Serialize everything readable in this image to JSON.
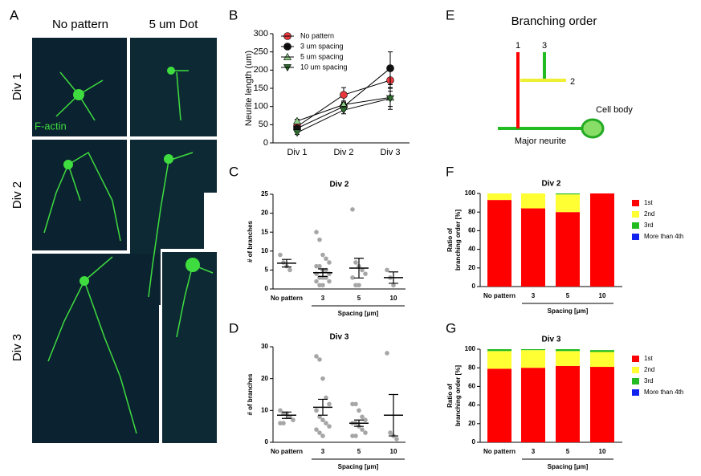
{
  "panel_a": {
    "letter": "A",
    "columns": [
      "No pattern",
      "5 um Dot"
    ],
    "rows": [
      "Div 1",
      "Div 2",
      "Div 3"
    ],
    "stain": "F-actin"
  },
  "panel_e": {
    "letter": "E",
    "title": "Branching order",
    "labels": [
      "1",
      "3",
      "2",
      "Cell body",
      "Major neurite"
    ]
  },
  "chart_data": [
    {
      "type": "line",
      "letter": "B",
      "ylabel": "Neurite length (um)",
      "categories": [
        "Div 1",
        "Div 2",
        "Div 3"
      ],
      "ylim": [
        0,
        300
      ],
      "yticks": [
        0,
        50,
        100,
        150,
        200,
        250,
        300
      ],
      "series": [
        {
          "name": "No pattern",
          "color": "#e8383d",
          "marker": "circle",
          "values": [
            45,
            132,
            172
          ],
          "errors": [
            5,
            20,
            30
          ]
        },
        {
          "name": "3 um spacing",
          "color": "#111111",
          "marker": "circle",
          "values": [
            40,
            100,
            205
          ],
          "errors": [
            5,
            10,
            45
          ]
        },
        {
          "name": "5 um spacing",
          "color": "#8fd08a",
          "marker": "triangle-up",
          "values": [
            60,
            105,
            125
          ],
          "errors": [
            5,
            10,
            25
          ]
        },
        {
          "name": "10 um spacing",
          "color": "#2e6b2e",
          "marker": "triangle-down",
          "values": [
            28,
            90,
            122
          ],
          "errors": [
            5,
            10,
            30
          ]
        }
      ]
    },
    {
      "type": "strip",
      "letter": "C",
      "title": "Div 2",
      "ylabel": "# of branches",
      "xlabel": "Spacing [μm]",
      "categories": [
        "No pattern",
        "3",
        "5",
        "10"
      ],
      "ylim": [
        0,
        25
      ],
      "yticks": [
        0,
        5,
        10,
        15,
        20,
        25
      ],
      "color": "#a6a6a6",
      "points": [
        [
          9,
          7,
          6,
          5
        ],
        [
          15,
          13,
          9,
          8,
          7,
          6,
          6,
          5,
          5,
          4,
          4,
          3,
          3,
          3,
          2,
          2,
          1,
          1
        ],
        [
          21,
          7,
          6,
          5,
          4,
          3,
          1,
          1
        ],
        [
          5,
          3,
          1
        ]
      ],
      "means": [
        6.8,
        4.3,
        5.5,
        3
      ],
      "sems": [
        1,
        1,
        2.6,
        1.5
      ]
    },
    {
      "type": "strip",
      "letter": "D",
      "title": "Div 3",
      "ylabel": "# of branches",
      "xlabel": "Spacing [μm]",
      "categories": [
        "No pattern",
        "3",
        "5",
        "10"
      ],
      "ylim": [
        0,
        30
      ],
      "yticks": [
        0,
        10,
        20,
        30
      ],
      "color": "#a6a6a6",
      "points": [
        [
          10,
          9,
          9,
          8,
          7,
          6,
          6
        ],
        [
          27,
          26,
          20,
          14,
          12,
          10,
          8,
          7,
          6,
          5,
          4,
          3,
          2
        ],
        [
          12,
          12,
          10,
          8,
          7,
          6,
          6,
          5,
          4,
          3,
          2,
          2
        ],
        [
          28,
          3,
          2,
          1
        ]
      ],
      "means": [
        8.5,
        11,
        6,
        8.5
      ],
      "sems": [
        1,
        2.5,
        1,
        6.5
      ]
    },
    {
      "type": "stacked-bar",
      "letter": "F",
      "title": "Div 2",
      "ylabel": [
        "Ratio of",
        "branching order [%]"
      ],
      "xlabel": "Spacing [μm]",
      "categories": [
        "No pattern",
        "3",
        "5",
        "10"
      ],
      "ylim": [
        0,
        100
      ],
      "yticks": [
        0,
        20,
        40,
        60,
        80,
        100
      ],
      "series": [
        {
          "name": "1st",
          "color": "#ff0000",
          "values": [
            93,
            84,
            80,
            100
          ]
        },
        {
          "name": "2nd",
          "color": "#ffff33",
          "values": [
            7,
            16,
            19,
            0
          ]
        },
        {
          "name": "3rd",
          "color": "#22bb22",
          "values": [
            0,
            0,
            1,
            0
          ]
        },
        {
          "name": "More than 4th",
          "color": "#1122ee",
          "values": [
            0,
            0,
            0,
            0
          ]
        }
      ]
    },
    {
      "type": "stacked-bar",
      "letter": "G",
      "title": "Div 3",
      "ylabel": [
        "Ratio of",
        "branching order [%]"
      ],
      "xlabel": "Spacing [μm]",
      "categories": [
        "No pattern",
        "3",
        "5",
        "10"
      ],
      "ylim": [
        0,
        100
      ],
      "yticks": [
        0,
        20,
        40,
        60,
        80,
        100
      ],
      "series": [
        {
          "name": "1st",
          "color": "#ff0000",
          "values": [
            79,
            80,
            82,
            81
          ]
        },
        {
          "name": "2nd",
          "color": "#ffff33",
          "values": [
            19,
            19,
            16,
            16
          ]
        },
        {
          "name": "3rd",
          "color": "#22bb22",
          "values": [
            2,
            1,
            2,
            2
          ]
        },
        {
          "name": "More than 4th",
          "color": "#1122ee",
          "values": [
            0,
            0,
            0,
            0
          ]
        }
      ]
    }
  ]
}
